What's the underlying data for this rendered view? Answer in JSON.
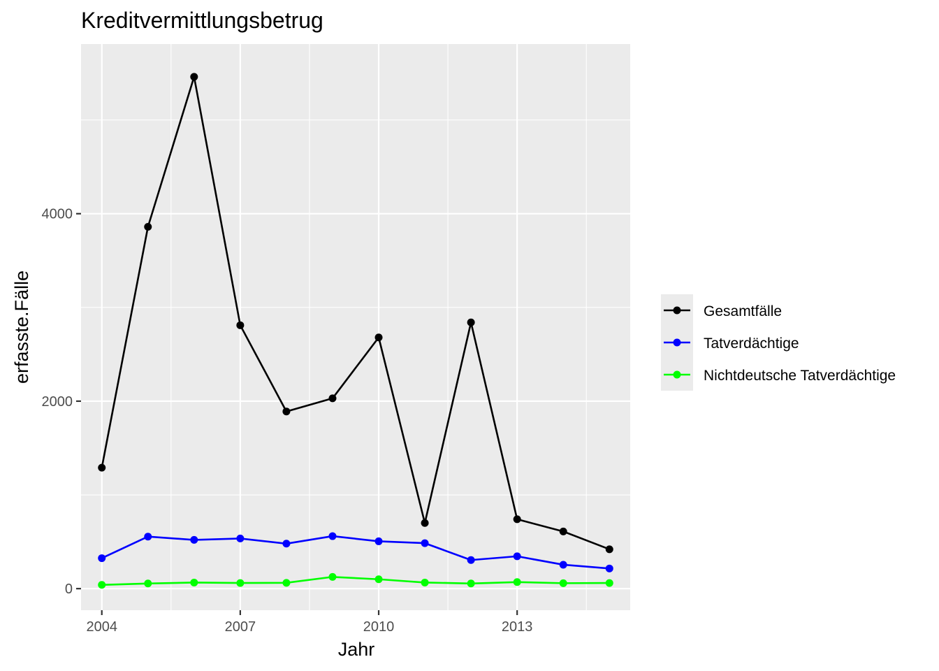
{
  "chart_data": {
    "type": "line",
    "title": "Kreditvermittlungsbetrug",
    "xlabel": "Jahr",
    "ylabel": "erfasste.Fälle",
    "x": [
      2004,
      2005,
      2006,
      2007,
      2008,
      2009,
      2010,
      2011,
      2012,
      2013,
      2014,
      2015
    ],
    "xlim": [
      2003.55,
      2015.45
    ],
    "ylim": [
      -230,
      5810
    ],
    "x_ticks": [
      2004,
      2007,
      2010,
      2013
    ],
    "x_tick_labels": [
      "2004",
      "2007",
      "2010",
      "2013"
    ],
    "y_ticks": [
      0,
      2000,
      4000
    ],
    "y_tick_labels": [
      "0",
      "2000",
      "4000"
    ],
    "grid": true,
    "legend_position": "right",
    "series": [
      {
        "name": "Gesamtfälle",
        "color": "#000000",
        "values": [
          1290,
          3860,
          5460,
          2810,
          1890,
          2030,
          2680,
          700,
          2840,
          740,
          610,
          420
        ]
      },
      {
        "name": "Tatverdächtige",
        "color": "#0000ff",
        "values": [
          325,
          555,
          520,
          535,
          480,
          560,
          505,
          485,
          305,
          345,
          255,
          215
        ]
      },
      {
        "name": "Nichtdeutsche Tatverdächtige",
        "color": "#00ff00",
        "values": [
          40,
          55,
          65,
          60,
          62,
          125,
          100,
          65,
          55,
          70,
          58,
          60
        ]
      }
    ]
  }
}
